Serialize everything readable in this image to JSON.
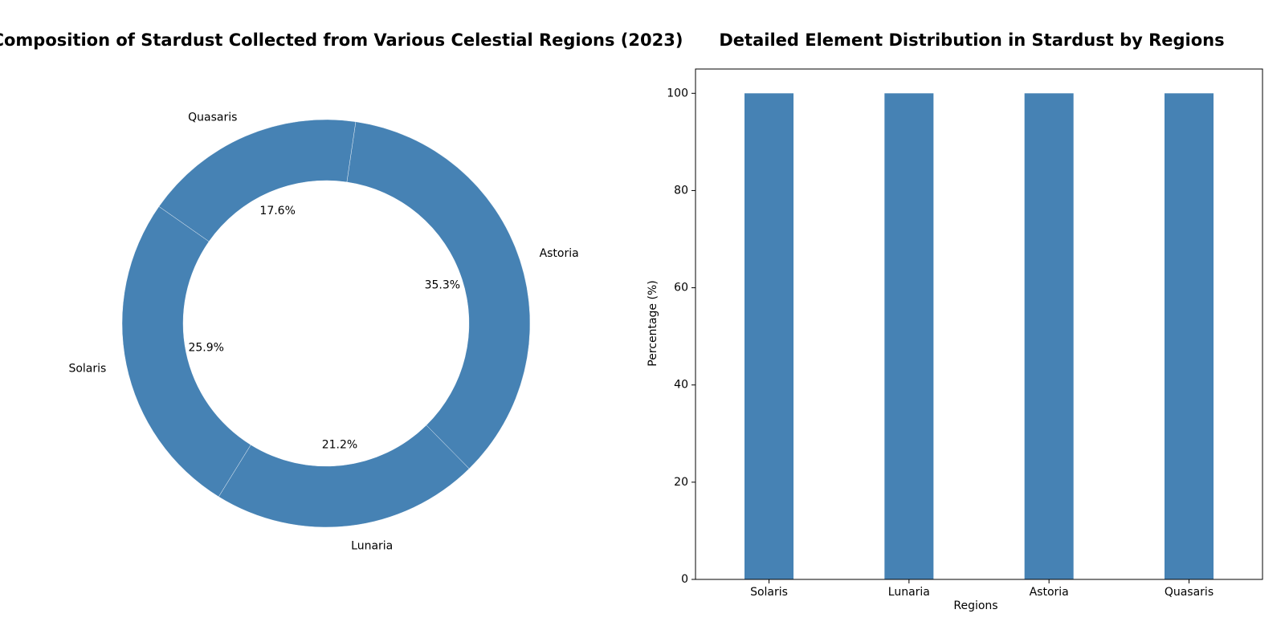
{
  "colors": {
    "slice": "#4682b4",
    "bar": "#4682b4",
    "axis": "#000000",
    "background": "#ffffff"
  },
  "chart_data": [
    {
      "type": "pie",
      "title": "Composition of Stardust Collected from Various Celestial Regions (2023)",
      "donut": true,
      "categories": [
        "Solaris",
        "Lunaria",
        "Astoria",
        "Quasaris"
      ],
      "values": [
        25.9,
        21.2,
        35.3,
        17.6
      ],
      "value_labels": [
        "25.9%",
        "21.2%",
        "35.3%",
        "17.6%"
      ],
      "start_angle_deg": 145,
      "direction": "counterclockwise"
    },
    {
      "type": "bar",
      "title": "Detailed Element Distribution in Stardust by Regions",
      "categories": [
        "Solaris",
        "Lunaria",
        "Astoria",
        "Quasaris"
      ],
      "values": [
        100,
        100,
        100,
        100
      ],
      "xlabel": "Regions",
      "ylabel": "Percentage (%)",
      "ylim": [
        0,
        105
      ],
      "yticks": [
        0,
        20,
        40,
        60,
        80,
        100
      ],
      "grid": false,
      "legend": "none"
    }
  ]
}
